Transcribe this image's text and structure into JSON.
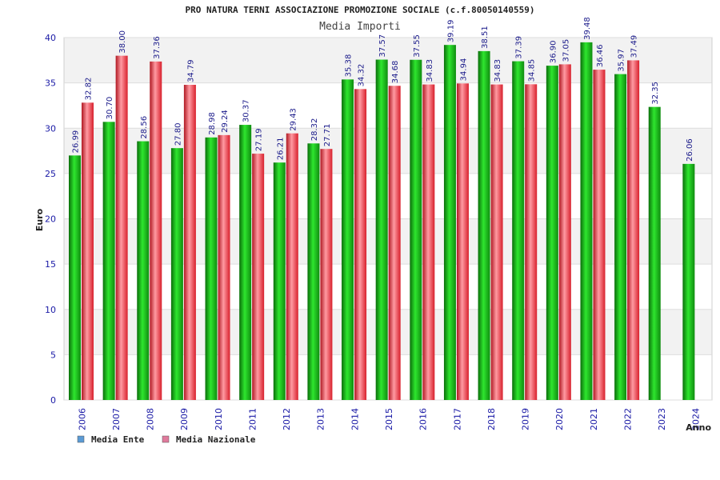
{
  "chart_data": {
    "type": "bar",
    "title": "PRO NATURA TERNI ASSOCIAZIONE PROMOZIONE SOCIALE (c.f.80050140559)",
    "subtitle": "Media Importi",
    "xlabel": "Anno",
    "ylabel": "Euro",
    "ylim": [
      0,
      40
    ],
    "yticks": [
      0,
      5,
      10,
      15,
      20,
      25,
      30,
      35,
      40
    ],
    "categories": [
      "2006",
      "2007",
      "2008",
      "2009",
      "2010",
      "2011",
      "2012",
      "2013",
      "2014",
      "2015",
      "2016",
      "2017",
      "2018",
      "2019",
      "2020",
      "2021",
      "2022",
      "2023",
      "2024"
    ],
    "series": [
      {
        "name": "Media Ente",
        "legend_color": "#5b9bd5",
        "bar_color": "#1aa31a",
        "values": [
          26.99,
          30.7,
          28.56,
          27.8,
          28.98,
          30.37,
          26.21,
          28.32,
          35.38,
          37.57,
          37.55,
          39.19,
          38.51,
          37.39,
          36.9,
          39.48,
          35.97,
          32.35,
          26.06
        ]
      },
      {
        "name": "Media Nazionale",
        "legend_color": "#e07a9c",
        "bar_color": "#e32a35",
        "values": [
          32.82,
          38.0,
          37.36,
          34.79,
          29.24,
          27.19,
          29.43,
          27.71,
          34.32,
          34.68,
          34.83,
          34.94,
          34.83,
          34.85,
          37.05,
          36.46,
          37.49,
          null,
          null
        ]
      }
    ],
    "grid": true,
    "legend_position": "bottom-left"
  }
}
